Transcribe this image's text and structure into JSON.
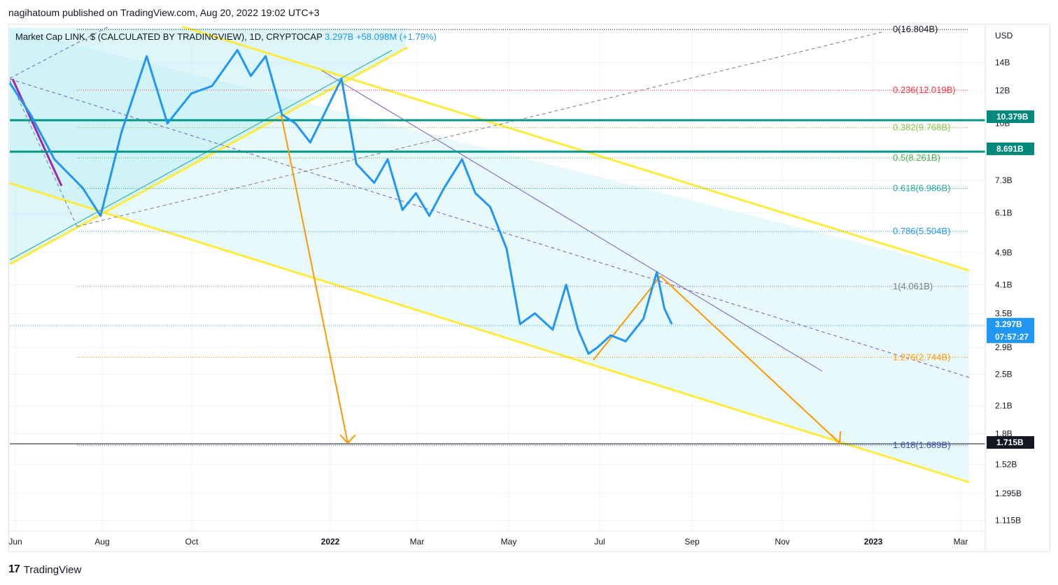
{
  "publisher_line": "nagihatoum published on TradingView.com, Aug 20, 2022 19:02 UTC+3",
  "legend": {
    "symbol": "Market Cap LINK, $ (CALCULATED BY TRADINGVIEW), 1D, CRYPTOCAP",
    "value": "3.297B",
    "change": "+58.098M (+1.79%)"
  },
  "footer": {
    "logo_glyph": "17",
    "brand": "TradingView"
  },
  "colors": {
    "price_line": "#2196f3",
    "channel_line": "#ffeb3b",
    "channel_fill": "#e0f7fa",
    "support_line": "#009688",
    "arrow": "#ff9800",
    "trend_purple": "#7e57c2"
  },
  "chart_data": {
    "type": "line",
    "title": "Market Cap LINK, $ (CALCULATED BY TRADINGVIEW), 1D, CRYPTOCAP",
    "currency_label": "USD",
    "scale": "log",
    "y_ticks": [
      "14B",
      "12B",
      "10B",
      "8.6B",
      "7.3B",
      "6.1B",
      "4.9B",
      "4.1B",
      "3.5B",
      "2.9B",
      "2.5B",
      "2.1B",
      "1.8B",
      "1.52B",
      "1.295B",
      "1.115B"
    ],
    "x_ticks": [
      "Jun",
      "Aug",
      "Oct",
      "2022",
      "Mar",
      "May",
      "Jul",
      "Sep",
      "Nov",
      "2023",
      "Mar"
    ],
    "x": [
      "2021-06-01",
      "2021-06-15",
      "2021-07-01",
      "2021-07-20",
      "2021-08-01",
      "2021-08-15",
      "2021-09-01",
      "2021-09-15",
      "2021-10-01",
      "2021-10-15",
      "2021-11-01",
      "2021-11-10",
      "2021-11-20",
      "2021-12-01",
      "2021-12-10",
      "2021-12-20",
      "2022-01-01",
      "2022-01-10",
      "2022-01-20",
      "2022-02-01",
      "2022-02-10",
      "2022-02-20",
      "2022-03-01",
      "2022-03-10",
      "2022-03-20",
      "2022-04-01",
      "2022-04-10",
      "2022-04-20",
      "2022-05-01",
      "2022-05-10",
      "2022-05-20",
      "2022-06-01",
      "2022-06-10",
      "2022-06-18",
      "2022-06-25",
      "2022-07-01",
      "2022-07-10",
      "2022-07-20",
      "2022-08-01",
      "2022-08-10",
      "2022-08-15",
      "2022-08-20"
    ],
    "series": [
      {
        "values": [
          12.5,
          10.5,
          8.2,
          7.0,
          6.0,
          9.5,
          14.5,
          10.0,
          11.8,
          12.3,
          15.0,
          13.0,
          14.5,
          10.5,
          10.0,
          9.0,
          11.0,
          12.8,
          8.0,
          7.2,
          8.2,
          6.2,
          6.8,
          6.0,
          7.0,
          8.2,
          6.8,
          6.3,
          5.0,
          3.3,
          3.5,
          3.2,
          4.1,
          3.2,
          2.8,
          2.9,
          3.1,
          3.0,
          3.4,
          4.4,
          3.6,
          3.297
        ]
      }
    ],
    "fib_levels": [
      {
        "label": "0(16.804B)",
        "value": 16.804
      },
      {
        "label": "0.236(12.019B)",
        "value": 12.019
      },
      {
        "label": "0.382(9.768B)",
        "value": 9.768
      },
      {
        "label": "0.5(8.261B)",
        "value": 8.261
      },
      {
        "label": "0.618(6.986B)",
        "value": 6.986
      },
      {
        "label": "0.786(5.504B)",
        "value": 5.504
      },
      {
        "label": "1(4.061B)",
        "value": 4.061
      },
      {
        "label": "1.276(2.744B)",
        "value": 2.744
      },
      {
        "label": "1.618(1.689B)",
        "value": 1.689
      }
    ],
    "horizontal_lines": [
      {
        "label": "10.379B",
        "value": 10.379
      },
      {
        "label": "8.691B",
        "value": 8.691
      },
      {
        "label": "1.715B",
        "value": 1.715
      }
    ],
    "last_price": {
      "label": "3.297B",
      "countdown": "07:57:27",
      "value": 3.297
    }
  }
}
